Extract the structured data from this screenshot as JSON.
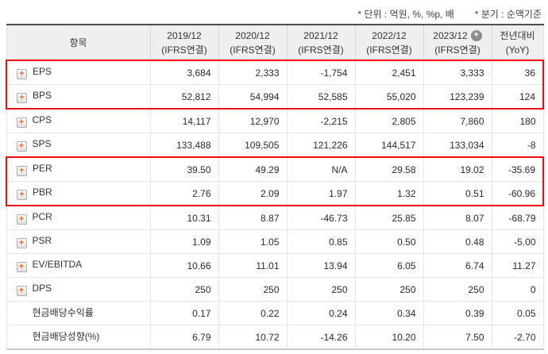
{
  "notes": {
    "unit": "* 단위 : 억원, %, %p, 배",
    "basis": "* 분기 : 순액기준"
  },
  "icons": {
    "expand_plus": "+",
    "header_plus": "+"
  },
  "colors": {
    "highlight_border": "#ee0a0a",
    "negative_value": "#e32222",
    "plus_icon_orange": "#f3641d",
    "header_badge_gray": "#8c8c8c"
  },
  "table": {
    "item_column_header": "항목",
    "columns": [
      {
        "period": "2019/12",
        "standard": "(IFRS연결)",
        "badge": false
      },
      {
        "period": "2020/12",
        "standard": "(IFRS연결)",
        "badge": false
      },
      {
        "period": "2021/12",
        "standard": "(IFRS연결)",
        "badge": false
      },
      {
        "period": "2022/12",
        "standard": "(IFRS연결)",
        "badge": false
      },
      {
        "period": "2023/12",
        "standard": "(IFRS연결)",
        "badge": true
      },
      {
        "period": "전년대비",
        "standard": "(YoY)",
        "badge": false
      }
    ],
    "rows": [
      {
        "label": "EPS",
        "expandable": true,
        "highlighted": true,
        "values": [
          "3,684",
          "2,333",
          "-1,754",
          "2,451",
          "3,333",
          "36"
        ]
      },
      {
        "label": "BPS",
        "expandable": true,
        "highlighted": true,
        "values": [
          "52,812",
          "54,994",
          "52,585",
          "55,020",
          "123,239",
          "124"
        ]
      },
      {
        "label": "CPS",
        "expandable": true,
        "highlighted": false,
        "values": [
          "14,117",
          "12,970",
          "-2,215",
          "2,805",
          "7,860",
          "180"
        ]
      },
      {
        "label": "SPS",
        "expandable": true,
        "highlighted": false,
        "values": [
          "133,488",
          "109,505",
          "121,226",
          "144,517",
          "133,034",
          "-8"
        ]
      },
      {
        "label": "PER",
        "expandable": true,
        "highlighted": true,
        "values": [
          "39.50",
          "49.29",
          "N/A",
          "29.58",
          "19.02",
          "-35.69"
        ]
      },
      {
        "label": "PBR",
        "expandable": true,
        "highlighted": true,
        "values": [
          "2.76",
          "2.09",
          "1.97",
          "1.32",
          "0.51",
          "-60.96"
        ]
      },
      {
        "label": "PCR",
        "expandable": true,
        "highlighted": false,
        "values": [
          "10.31",
          "8.87",
          "-46.73",
          "25.85",
          "8.07",
          "-68.79"
        ]
      },
      {
        "label": "PSR",
        "expandable": true,
        "highlighted": false,
        "values": [
          "1.09",
          "1.05",
          "0.85",
          "0.50",
          "0.48",
          "-5.00"
        ]
      },
      {
        "label": "EV/EBITDA",
        "expandable": true,
        "highlighted": false,
        "values": [
          "10.66",
          "11.01",
          "13.94",
          "6.05",
          "6.74",
          "11.27"
        ]
      },
      {
        "label": "DPS",
        "expandable": true,
        "highlighted": false,
        "values": [
          "250",
          "250",
          "250",
          "250",
          "250",
          "0"
        ]
      },
      {
        "label": "현금배당수익률",
        "expandable": false,
        "highlighted": false,
        "values": [
          "0.17",
          "0.22",
          "0.24",
          "0.34",
          "0.39",
          "0.05"
        ]
      },
      {
        "label": "현금배당성향(%)",
        "expandable": false,
        "highlighted": false,
        "values": [
          "6.79",
          "10.72",
          "-14.26",
          "10.20",
          "7.50",
          "-2.70"
        ]
      }
    ]
  }
}
